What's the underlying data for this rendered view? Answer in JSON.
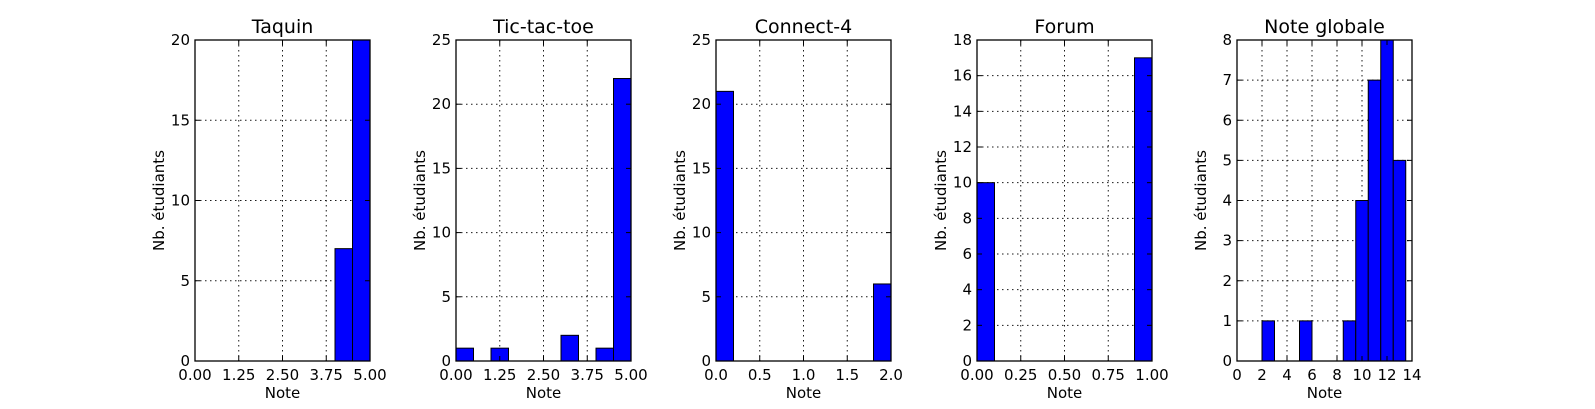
{
  "chart_data": [
    {
      "type": "bar",
      "title": "Taquin",
      "xlabel": "Note",
      "ylabel": "Nb. étudiants",
      "xlim": [
        0,
        5
      ],
      "ylim": [
        0,
        20
      ],
      "xticks": [
        "0.00",
        "1.25",
        "2.50",
        "3.75",
        "5.00"
      ],
      "xtick_values": [
        0,
        1.25,
        2.5,
        3.75,
        5
      ],
      "yticks": [
        "0",
        "5",
        "10",
        "15",
        "20"
      ],
      "ytick_values": [
        0,
        5,
        10,
        15,
        20
      ],
      "grid": true,
      "bars": [
        {
          "x0": 4.0,
          "x1": 4.5,
          "value": 7
        },
        {
          "x0": 4.5,
          "x1": 5.0,
          "value": 20
        }
      ]
    },
    {
      "type": "bar",
      "title": "Tic-tac-toe",
      "xlabel": "Note",
      "ylabel": "Nb. étudiants",
      "xlim": [
        0,
        5
      ],
      "ylim": [
        0,
        25
      ],
      "xticks": [
        "0.00",
        "1.25",
        "2.50",
        "3.75",
        "5.00"
      ],
      "xtick_values": [
        0,
        1.25,
        2.5,
        3.75,
        5
      ],
      "yticks": [
        "0",
        "5",
        "10",
        "15",
        "20",
        "25"
      ],
      "ytick_values": [
        0,
        5,
        10,
        15,
        20,
        25
      ],
      "grid": true,
      "bars": [
        {
          "x0": 0.0,
          "x1": 0.5,
          "value": 1
        },
        {
          "x0": 1.0,
          "x1": 1.5,
          "value": 1
        },
        {
          "x0": 3.0,
          "x1": 3.5,
          "value": 2
        },
        {
          "x0": 4.0,
          "x1": 4.5,
          "value": 1
        },
        {
          "x0": 4.5,
          "x1": 5.0,
          "value": 22
        }
      ]
    },
    {
      "type": "bar",
      "title": "Connect-4",
      "xlabel": "Note",
      "ylabel": "Nb. étudiants",
      "xlim": [
        0,
        2
      ],
      "ylim": [
        0,
        25
      ],
      "xticks": [
        "0.0",
        "0.5",
        "1.0",
        "1.5",
        "2.0"
      ],
      "xtick_values": [
        0,
        0.5,
        1,
        1.5,
        2
      ],
      "yticks": [
        "0",
        "5",
        "10",
        "15",
        "20",
        "25"
      ],
      "ytick_values": [
        0,
        5,
        10,
        15,
        20,
        25
      ],
      "grid": true,
      "bars": [
        {
          "x0": 0.0,
          "x1": 0.2,
          "value": 21
        },
        {
          "x0": 1.8,
          "x1": 2.0,
          "value": 6
        }
      ]
    },
    {
      "type": "bar",
      "title": "Forum",
      "xlabel": "Note",
      "ylabel": "Nb. étudiants",
      "xlim": [
        0,
        1
      ],
      "ylim": [
        0,
        18
      ],
      "xticks": [
        "0.00",
        "0.25",
        "0.50",
        "0.75",
        "1.00"
      ],
      "xtick_values": [
        0,
        0.25,
        0.5,
        0.75,
        1
      ],
      "yticks": [
        "0",
        "2",
        "4",
        "6",
        "8",
        "10",
        "12",
        "14",
        "16",
        "18"
      ],
      "ytick_values": [
        0,
        2,
        4,
        6,
        8,
        10,
        12,
        14,
        16,
        18
      ],
      "grid": true,
      "bars": [
        {
          "x0": 0.0,
          "x1": 0.1,
          "value": 10
        },
        {
          "x0": 0.9,
          "x1": 1.0,
          "value": 17
        }
      ]
    },
    {
      "type": "bar",
      "title": "Note globale",
      "xlabel": "Note",
      "ylabel": "Nb. étudiants",
      "xlim": [
        0,
        14
      ],
      "ylim": [
        0,
        8
      ],
      "xticks": [
        "0",
        "2",
        "4",
        "6",
        "8",
        "10",
        "12",
        "14"
      ],
      "xtick_values": [
        0,
        2,
        4,
        6,
        8,
        10,
        12,
        14
      ],
      "yticks": [
        "0",
        "1",
        "2",
        "3",
        "4",
        "5",
        "6",
        "7",
        "8"
      ],
      "ytick_values": [
        0,
        1,
        2,
        3,
        4,
        5,
        6,
        7,
        8
      ],
      "grid": true,
      "bars": [
        {
          "x0": 2.0,
          "x1": 3.0,
          "value": 1
        },
        {
          "x0": 5.0,
          "x1": 6.0,
          "value": 1
        },
        {
          "x0": 8.5,
          "x1": 9.5,
          "value": 1
        },
        {
          "x0": 9.5,
          "x1": 10.5,
          "value": 4
        },
        {
          "x0": 10.5,
          "x1": 11.5,
          "value": 7
        },
        {
          "x0": 11.5,
          "x1": 12.5,
          "value": 8
        },
        {
          "x0": 12.5,
          "x1": 13.5,
          "value": 5
        }
      ]
    }
  ],
  "colors": {
    "bar_fill": "#0000ff",
    "frame": "#000000",
    "background": "#ffffff"
  }
}
